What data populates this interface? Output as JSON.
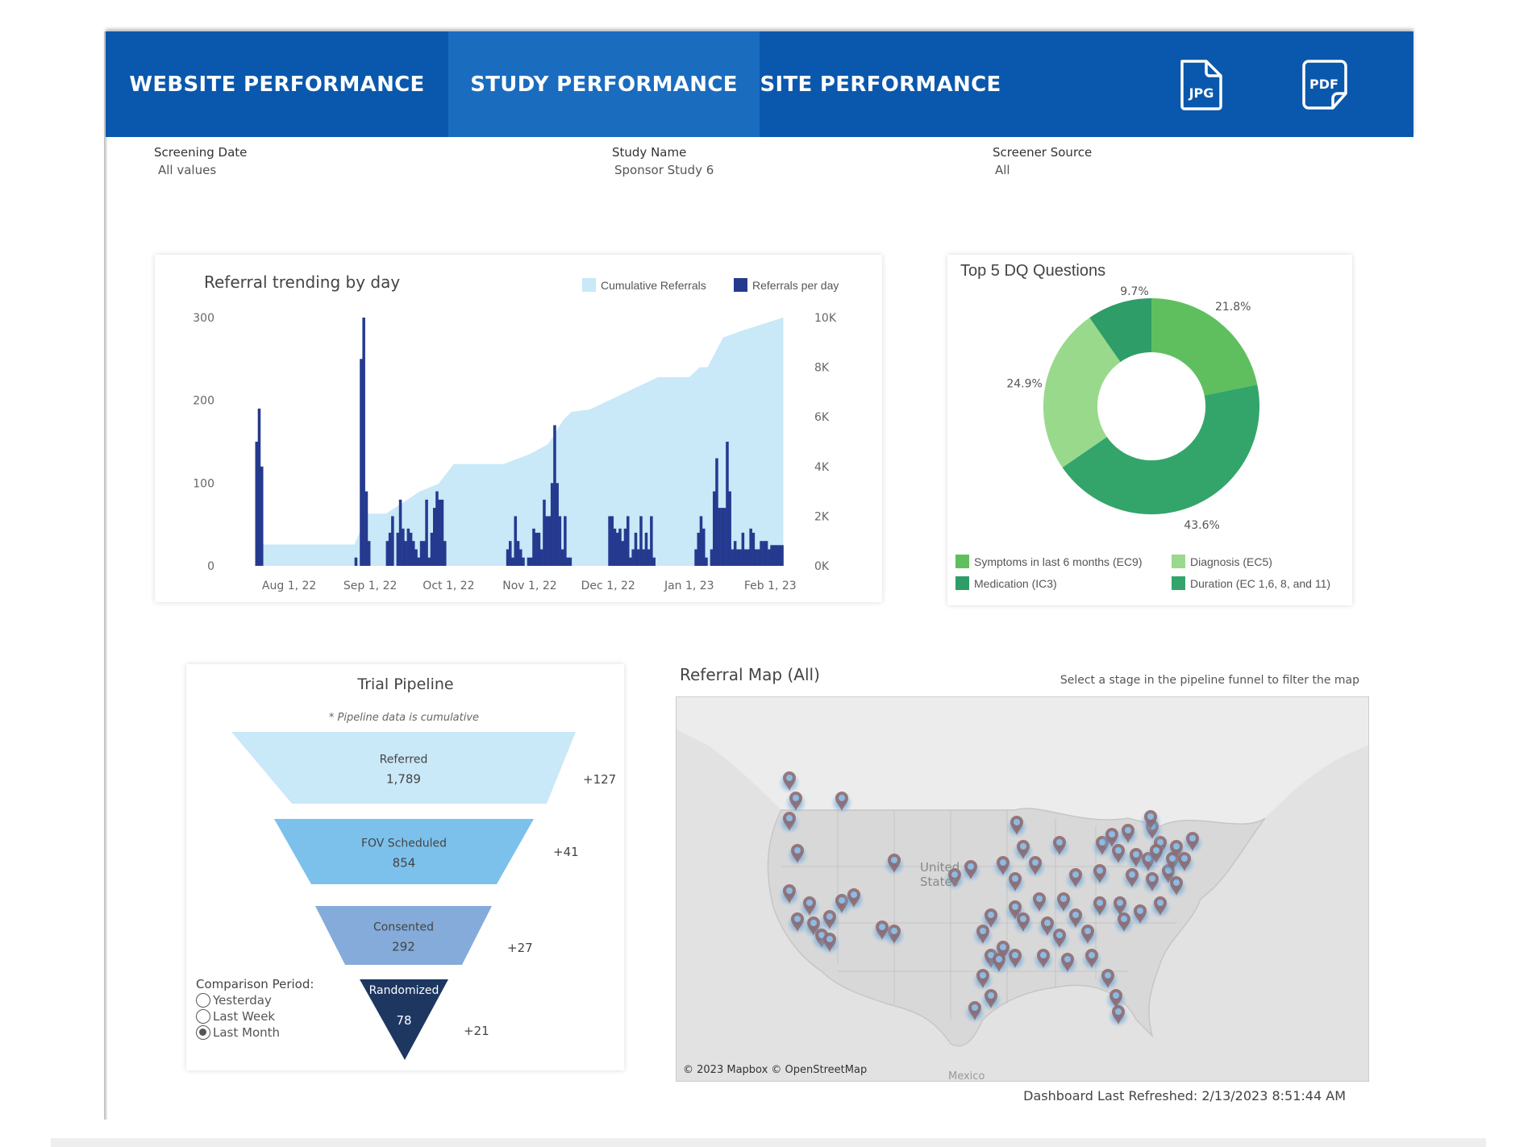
{
  "header": {
    "tabs": [
      {
        "label": "WEBSITE PERFORMANCE",
        "active": false
      },
      {
        "label": "STUDY PERFORMANCE",
        "active": true
      },
      {
        "label": "SITE PERFORMANCE",
        "active": false
      }
    ],
    "export_jpg_label": "JPG",
    "export_pdf_label": "PDF",
    "colors": {
      "bar": "#0a58ad",
      "active_tab": "#1a6cbf"
    }
  },
  "filters": [
    {
      "label": "Screening Date",
      "value": "All values"
    },
    {
      "label": "Study Name",
      "value": "Sponsor Study 6"
    },
    {
      "label": "Screener Source",
      "value": "All"
    }
  ],
  "chart_data": [
    {
      "type": "bar+area",
      "title": "Referral trending by day",
      "legend": [
        {
          "name": "Cumulative Referrals",
          "color": "#c9e8f8"
        },
        {
          "name": "Referrals per day",
          "color": "#253a8f"
        }
      ],
      "legend_placement": "top-right",
      "grid": false,
      "y_left": {
        "ylim": [
          0,
          300
        ],
        "ticks": [
          "0",
          "100",
          "200",
          "300"
        ],
        "tick_values": [
          0,
          100,
          200,
          300
        ]
      },
      "y_right": {
        "ylim": [
          0,
          10000
        ],
        "ticks": [
          "0K",
          "2K",
          "4K",
          "6K",
          "8K",
          "10K"
        ],
        "tick_values": [
          0,
          2000,
          4000,
          6000,
          8000,
          10000
        ]
      },
      "x_ticks": [
        {
          "date": "2022-08-01",
          "label": "Aug 1, 22"
        },
        {
          "date": "2022-09-01",
          "label": "Sep 1, 22"
        },
        {
          "date": "2022-10-01",
          "label": "Oct 1, 22"
        },
        {
          "date": "2022-11-01",
          "label": "Nov 1, 22"
        },
        {
          "date": "2022-12-01",
          "label": "Dec 1, 22"
        },
        {
          "date": "2023-01-01",
          "label": "Jan 1, 23"
        },
        {
          "date": "2023-02-01",
          "label": "Feb 1, 23"
        }
      ],
      "xlim": [
        "2022-07-17",
        "2023-02-08"
      ],
      "referrals_per_day": [
        [
          "2022-07-19",
          150
        ],
        [
          "2022-07-20",
          190
        ],
        [
          "2022-07-21",
          120
        ],
        [
          "2022-08-26",
          10
        ],
        [
          "2022-08-28",
          250
        ],
        [
          "2022-08-29",
          300
        ],
        [
          "2022-08-30",
          90
        ],
        [
          "2022-08-31",
          30
        ],
        [
          "2022-09-07",
          30
        ],
        [
          "2022-09-08",
          40
        ],
        [
          "2022-09-09",
          60
        ],
        [
          "2022-09-11",
          40
        ],
        [
          "2022-09-12",
          80
        ],
        [
          "2022-09-13",
          45
        ],
        [
          "2022-09-14",
          30
        ],
        [
          "2022-09-15",
          45
        ],
        [
          "2022-09-16",
          40
        ],
        [
          "2022-09-17",
          30
        ],
        [
          "2022-09-18",
          20
        ],
        [
          "2022-09-19",
          10
        ],
        [
          "2022-09-20",
          30
        ],
        [
          "2022-09-21",
          30
        ],
        [
          "2022-09-22",
          80
        ],
        [
          "2022-09-23",
          10
        ],
        [
          "2022-09-24",
          40
        ],
        [
          "2022-09-25",
          70
        ],
        [
          "2022-09-26",
          90
        ],
        [
          "2022-09-27",
          80
        ],
        [
          "2022-09-28",
          80
        ],
        [
          "2022-09-29",
          30
        ],
        [
          "2022-10-23",
          20
        ],
        [
          "2022-10-24",
          30
        ],
        [
          "2022-10-25",
          10
        ],
        [
          "2022-10-26",
          60
        ],
        [
          "2022-10-27",
          30
        ],
        [
          "2022-10-28",
          20
        ],
        [
          "2022-10-29",
          10
        ],
        [
          "2022-10-31",
          10
        ],
        [
          "2022-11-01",
          10
        ],
        [
          "2022-11-02",
          45
        ],
        [
          "2022-11-03",
          40
        ],
        [
          "2022-11-04",
          40
        ],
        [
          "2022-11-05",
          20
        ],
        [
          "2022-11-06",
          80
        ],
        [
          "2022-11-07",
          60
        ],
        [
          "2022-11-08",
          60
        ],
        [
          "2022-11-09",
          100
        ],
        [
          "2022-11-10",
          170
        ],
        [
          "2022-11-11",
          100
        ],
        [
          "2022-11-12",
          60
        ],
        [
          "2022-11-13",
          20
        ],
        [
          "2022-11-14",
          60
        ],
        [
          "2022-11-15",
          10
        ],
        [
          "2022-11-16",
          10
        ],
        [
          "2022-12-01",
          60
        ],
        [
          "2022-12-02",
          60
        ],
        [
          "2022-12-03",
          45
        ],
        [
          "2022-12-04",
          40
        ],
        [
          "2022-12-05",
          45
        ],
        [
          "2022-12-06",
          30
        ],
        [
          "2022-12-07",
          45
        ],
        [
          "2022-12-08",
          60
        ],
        [
          "2022-12-09",
          10
        ],
        [
          "2022-12-10",
          20
        ],
        [
          "2022-12-11",
          40
        ],
        [
          "2022-12-12",
          20
        ],
        [
          "2022-12-13",
          60
        ],
        [
          "2022-12-14",
          20
        ],
        [
          "2022-12-15",
          40
        ],
        [
          "2022-12-16",
          20
        ],
        [
          "2022-12-17",
          60
        ],
        [
          "2022-12-18",
          10
        ],
        [
          "2023-01-03",
          20
        ],
        [
          "2023-01-04",
          40
        ],
        [
          "2023-01-05",
          60
        ],
        [
          "2023-01-06",
          45
        ],
        [
          "2023-01-07",
          10
        ],
        [
          "2023-01-09",
          20
        ],
        [
          "2023-01-10",
          90
        ],
        [
          "2023-01-11",
          130
        ],
        [
          "2023-01-12",
          70
        ],
        [
          "2023-01-13",
          70
        ],
        [
          "2023-01-14",
          70
        ],
        [
          "2023-01-15",
          150
        ],
        [
          "2023-01-16",
          90
        ],
        [
          "2023-01-17",
          20
        ],
        [
          "2023-01-18",
          30
        ],
        [
          "2023-01-19",
          20
        ],
        [
          "2023-01-20",
          20
        ],
        [
          "2023-01-21",
          40
        ],
        [
          "2023-01-22",
          20
        ],
        [
          "2023-01-23",
          20
        ],
        [
          "2023-01-24",
          45
        ],
        [
          "2023-01-25",
          40
        ],
        [
          "2023-01-26",
          20
        ],
        [
          "2023-01-27",
          20
        ],
        [
          "2023-01-28",
          30
        ],
        [
          "2023-01-29",
          30
        ],
        [
          "2023-01-30",
          30
        ],
        [
          "2023-01-31",
          20
        ],
        [
          "2023-02-01",
          25
        ],
        [
          "2023-02-02",
          25
        ],
        [
          "2023-02-03",
          25
        ],
        [
          "2023-02-04",
          25
        ],
        [
          "2023-02-05",
          25
        ]
      ],
      "cumulative_referrals": [
        [
          "2022-07-22",
          860
        ],
        [
          "2022-08-26",
          860
        ],
        [
          "2022-08-31",
          2100
        ],
        [
          "2022-09-07",
          2100
        ],
        [
          "2022-09-20",
          3000
        ],
        [
          "2022-09-27",
          3300
        ],
        [
          "2022-10-03",
          4100
        ],
        [
          "2022-10-22",
          4100
        ],
        [
          "2022-11-01",
          4500
        ],
        [
          "2022-11-08",
          4900
        ],
        [
          "2022-11-14",
          5900
        ],
        [
          "2022-11-17",
          6200
        ],
        [
          "2022-11-24",
          6300
        ],
        [
          "2022-12-04",
          6800
        ],
        [
          "2022-12-14",
          7300
        ],
        [
          "2022-12-20",
          7600
        ],
        [
          "2023-01-01",
          7600
        ],
        [
          "2023-01-05",
          8000
        ],
        [
          "2023-01-08",
          8000
        ],
        [
          "2023-01-14",
          9200
        ],
        [
          "2023-01-22",
          9500
        ],
        [
          "2023-02-06",
          10000
        ]
      ]
    },
    {
      "type": "pie",
      "donut": true,
      "title": "Top 5 DQ Questions",
      "legend_placement": "bottom",
      "slices": [
        {
          "name": "Symptoms in last 6 months (EC9)",
          "value": 21.8,
          "label": "21.8%",
          "color": "#5fbf5f"
        },
        {
          "name": "Duration (EC 1,6, 8, and 11)",
          "value": 43.6,
          "label": "43.6%",
          "color": "#33a56b"
        },
        {
          "name": "Diagnosis (EC5)",
          "value": 24.9,
          "label": "24.9%",
          "color": "#99d98b"
        },
        {
          "name": "Medication (IC3)",
          "value": 9.7,
          "label": "9.7%",
          "color": "#2e9d68"
        }
      ],
      "legend_order": [
        0,
        2,
        3,
        1
      ]
    }
  ],
  "pipeline": {
    "title": "Trial Pipeline",
    "note": "* Pipeline data is cumulative",
    "stages": [
      {
        "name": "Referred",
        "value": "1,789",
        "delta": "+127",
        "color": "#c9e8f8"
      },
      {
        "name": "FOV Scheduled",
        "value": "854",
        "delta": "+41",
        "color": "#7cc1ec"
      },
      {
        "name": "Consented",
        "value": "292",
        "delta": "+27",
        "color": "#84abd9"
      },
      {
        "name": "Randomized",
        "value": "78",
        "delta": "+21",
        "color": "#1d3761"
      }
    ],
    "comparison": {
      "label": "Comparison Period:",
      "options": [
        "Yesterday",
        "Last Week",
        "Last Month"
      ],
      "selected": "Last Month"
    }
  },
  "map": {
    "title": "Referral Map (All)",
    "hint": "Select a stage in the pipeline funnel to filter the map",
    "attribution": "© 2023 Mapbox © OpenStreetMap",
    "labels": {
      "country": "United States",
      "country_line1": "Unite",
      "country_line2": "States",
      "south": "Mexico"
    },
    "pin_color": "#8e6b71",
    "glow_color": "#2f7cc4"
  },
  "footer": {
    "refreshed": "Dashboard Last Refreshed: 2/13/2023 8:51:44 AM"
  }
}
